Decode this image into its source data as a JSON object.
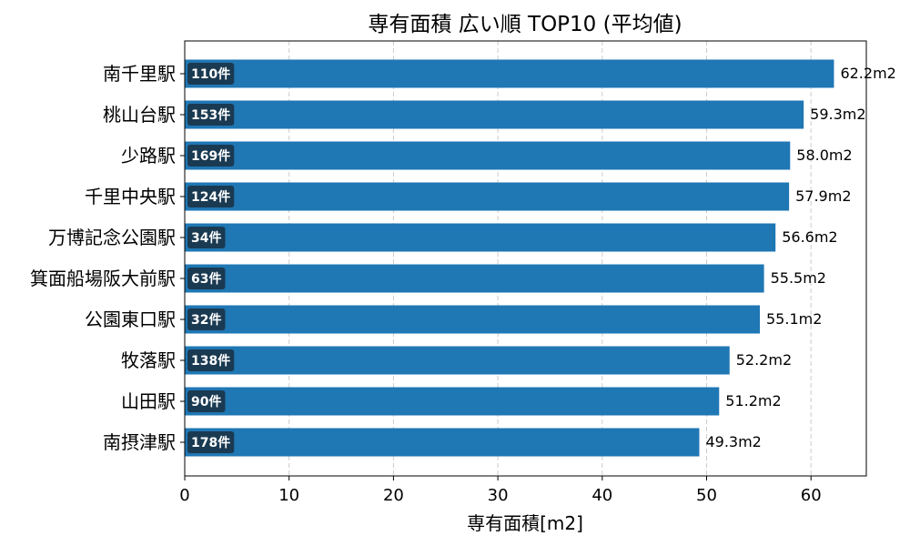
{
  "chart_data": {
    "type": "bar",
    "orientation": "horizontal",
    "title": "専有面積 広い順 TOP10 (平均値)",
    "xlabel": "専有面積[m2]",
    "ylabel": "",
    "xlim": [
      0,
      65.3
    ],
    "xticks": [
      0,
      10,
      20,
      30,
      40,
      50,
      60
    ],
    "grid": "x-dashed",
    "categories": [
      "南千里駅",
      "桃山台駅",
      "少路駅",
      "千里中央駅",
      "万博記念公園駅",
      "箕面船場阪大前駅",
      "公園東口駅",
      "牧落駅",
      "山田駅",
      "南摂津駅"
    ],
    "values": [
      62.2,
      59.3,
      58.0,
      57.9,
      56.6,
      55.5,
      55.1,
      52.2,
      51.2,
      49.3
    ],
    "value_labels": [
      "62.2m2",
      "59.3m2",
      "58.0m2",
      "57.9m2",
      "56.6m2",
      "55.5m2",
      "55.1m2",
      "52.2m2",
      "51.2m2",
      "49.3m2"
    ],
    "count_labels": [
      "110件",
      "153件",
      "169件",
      "124件",
      "34件",
      "63件",
      "32件",
      "138件",
      "90件",
      "178件"
    ],
    "colors": {
      "bar": "#1f77b4",
      "count_badge": "#1a3a52",
      "grid": "#cccccc",
      "axis": "#000000"
    }
  }
}
